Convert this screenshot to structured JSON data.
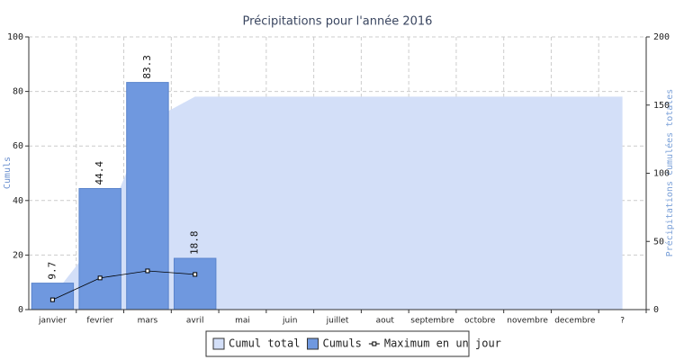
{
  "chart_data": {
    "type": "bar",
    "title": "Précipitations pour l'année 2016",
    "y_label": "Cumuls",
    "y2_label": "Précipitations cumulées totales",
    "categories": [
      "janvier",
      "fevrier",
      "mars",
      "avril",
      "mai",
      "juin",
      "juillet",
      "aout",
      "septembre",
      "octobre",
      "novembre",
      "decembre",
      "?"
    ],
    "series": [
      {
        "name": "Cumul total",
        "type": "area",
        "axis": "y2",
        "color": "#d3dff8",
        "values": [
          9.7,
          54.1,
          137.4,
          156.2,
          156.2,
          156.2,
          156.2,
          156.2,
          156.2,
          156.2,
          156.2,
          156.2,
          156.2
        ]
      },
      {
        "name": "Cumuls",
        "type": "bar",
        "color": "#6f98df",
        "values": [
          9.7,
          44.4,
          83.3,
          18.8,
          null,
          null,
          null,
          null,
          null,
          null,
          null,
          null,
          null
        ]
      },
      {
        "name": "Maximum en un jour",
        "type": "line",
        "color": "#000000",
        "values": [
          3.6,
          11.6,
          14.2,
          12.9,
          null,
          null,
          null,
          null,
          null,
          null,
          null,
          null,
          null
        ]
      }
    ],
    "ylim": [
      0,
      100
    ],
    "yticks": [
      0,
      20,
      40,
      60,
      80,
      100
    ],
    "y2lim": [
      0,
      200
    ],
    "y2ticks": [
      0,
      50,
      100,
      150,
      200
    ],
    "grid": true,
    "legend": "bottom"
  }
}
